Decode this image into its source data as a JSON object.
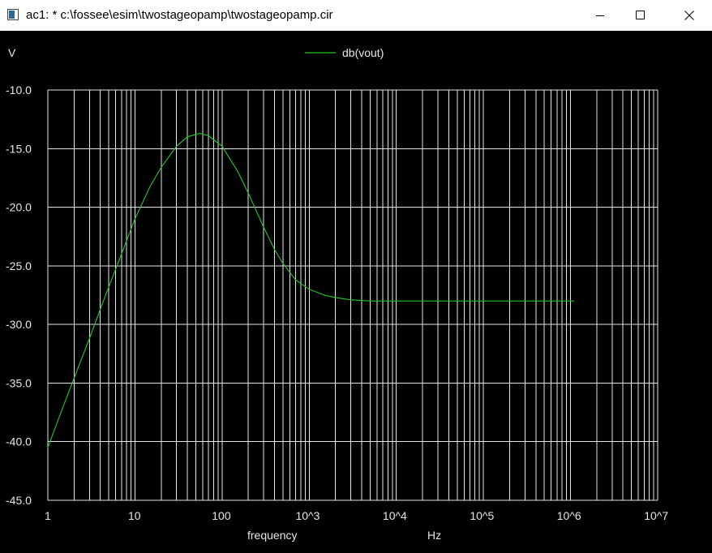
{
  "window": {
    "title": "ac1: * c:\\fossee\\esim\\twostageopamp\\twostageopamp.cir",
    "icon": "app-window-icon",
    "controls": [
      "minimize-icon",
      "maximize-icon",
      "close-icon"
    ]
  },
  "colors": {
    "background": "#000000",
    "grid": "#e6e6e6",
    "trace": "#22c822",
    "text": "#e6e6e6"
  },
  "chart_data": {
    "type": "line",
    "ylabel": "V",
    "xlabel": "frequency",
    "xunit": "Hz",
    "xscale": "log",
    "xlim": [
      1,
      10000000
    ],
    "ylim": [
      -45.0,
      -10.0
    ],
    "grid": true,
    "legend": "top-center",
    "x_tick_labels": [
      "1",
      "10",
      "100",
      "10^3",
      "10^4",
      "10^5",
      "10^6",
      "10^7"
    ],
    "y_tick_labels": [
      "-10.0",
      "-15.0",
      "-20.0",
      "-25.0",
      "-30.0",
      "-35.0",
      "-40.0",
      "-45.0"
    ],
    "y_ticks": [
      -10,
      -15,
      -20,
      -25,
      -30,
      -35,
      -40,
      -45
    ],
    "series": [
      {
        "name": "db(vout)",
        "color": "#22c822",
        "x": [
          1,
          1.5,
          2,
          3,
          4,
          5,
          7,
          10,
          15,
          20,
          30,
          40,
          55,
          70,
          100,
          150,
          200,
          300,
          400,
          500,
          700,
          1000,
          1500,
          2000,
          3000,
          5000,
          7000,
          10000,
          100000,
          1000000,
          1100000
        ],
        "y": [
          -40.5,
          -37.0,
          -34.6,
          -31.2,
          -28.7,
          -26.8,
          -24.0,
          -21.0,
          -18.2,
          -16.6,
          -14.8,
          -14.0,
          -13.7,
          -13.9,
          -14.8,
          -16.9,
          -18.8,
          -21.7,
          -23.6,
          -24.8,
          -26.2,
          -27.0,
          -27.5,
          -27.7,
          -27.9,
          -28.0,
          -28.0,
          -28.0,
          -28.0,
          -28.0,
          -28.0
        ]
      }
    ]
  }
}
